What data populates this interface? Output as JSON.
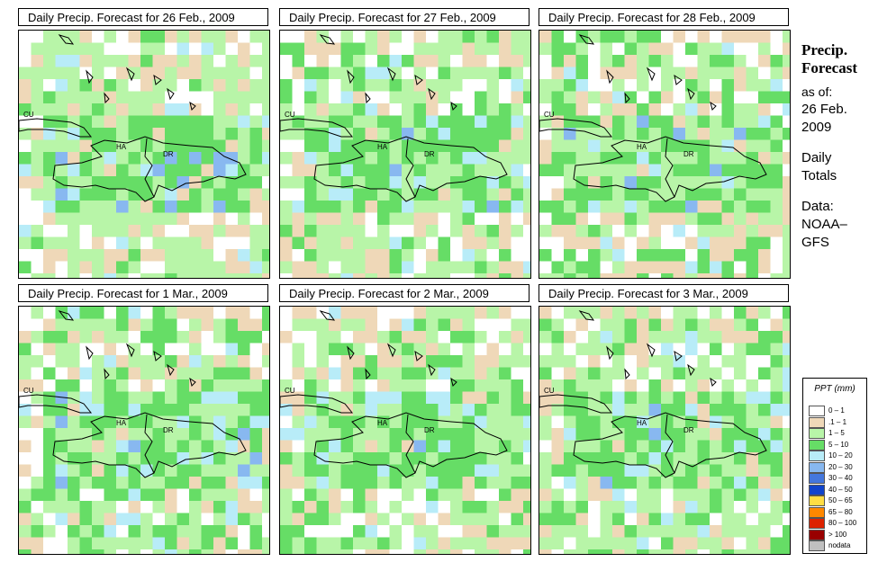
{
  "panels": [
    {
      "title": "Daily Precip. Forecast for  26 Feb., 2009",
      "seed": 11,
      "wet": 0.45
    },
    {
      "title": "Daily Precip. Forecast for  27 Feb., 2009",
      "seed": 23,
      "wet": 0.4
    },
    {
      "title": "Daily Precip. Forecast for  28 Feb., 2009",
      "seed": 37,
      "wet": 0.25
    },
    {
      "title": "Daily Precip. Forecast for  1 Mar., 2009",
      "seed": 41,
      "wet": 0.3
    },
    {
      "title": "Daily Precip. Forecast for  2 Mar., 2009",
      "seed": 53,
      "wet": 0.38
    },
    {
      "title": "Daily Precip. Forecast for  3 Mar., 2009",
      "seed": 67,
      "wet": 0.35
    }
  ],
  "map_labels": {
    "cuba": "CU",
    "haiti": "HA",
    "dr": "DR"
  },
  "side": {
    "head1": "Precip.",
    "head2": "Forecast",
    "asof": "as of:",
    "date1": "26 Feb.",
    "date2": "2009",
    "daily1": "Daily",
    "daily2": "Totals",
    "data1": "Data:",
    "data2": "NOAA–",
    "data3": "GFS"
  },
  "legend": {
    "title": "PPT (mm)",
    "items": [
      {
        "label": "0 – 1",
        "color": "#ffffff"
      },
      {
        "label": ".1 – 1",
        "color": "#efd8b8"
      },
      {
        "label": "1 – 5",
        "color": "#b8f5a8"
      },
      {
        "label": "5 – 10",
        "color": "#66dd66"
      },
      {
        "label": "10 – 20",
        "color": "#b8ecf8"
      },
      {
        "label": "20 – 30",
        "color": "#88b8f0"
      },
      {
        "label": "30 – 40",
        "color": "#4477dd"
      },
      {
        "label": "40 – 50",
        "color": "#1144cc"
      },
      {
        "label": "50 – 65",
        "color": "#ffdd44"
      },
      {
        "label": "65 – 80",
        "color": "#ff8800"
      },
      {
        "label": "80 – 100",
        "color": "#dd2200"
      },
      {
        "label": "> 100",
        "color": "#990000"
      },
      {
        "label": "nodata",
        "color": "#c0c0c0"
      }
    ]
  }
}
